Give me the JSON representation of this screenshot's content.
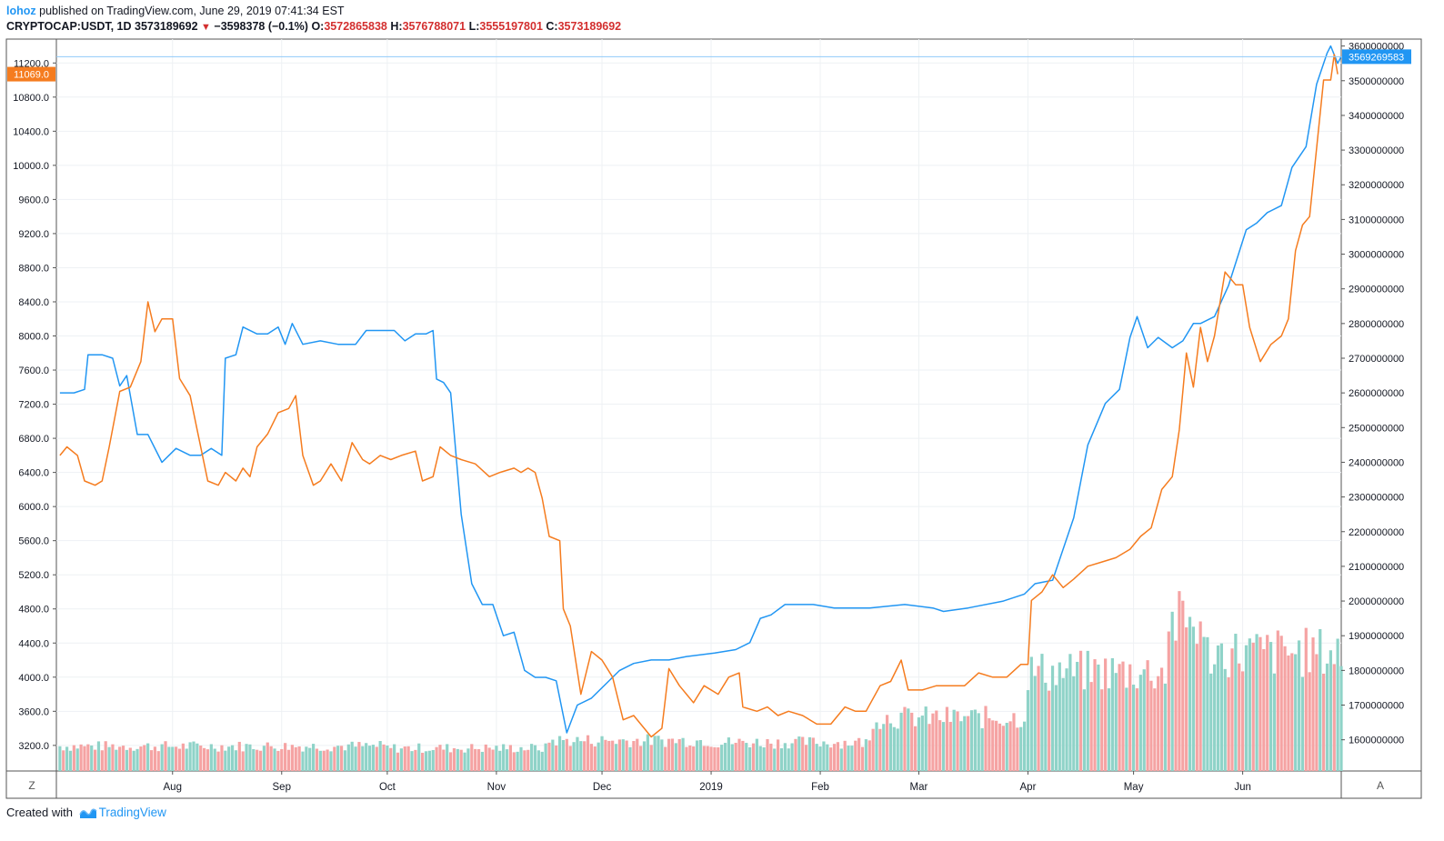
{
  "header": {
    "username": "lohoz",
    "published_text": "published on TradingView.com, June 29, 2019 07:41:34 EST",
    "symbol": "CRYPTOCAP:USDT, 1D",
    "last": "3573189692",
    "change": "−3598378 (−0.1%)",
    "open_label": "O:",
    "open": "3572865838",
    "high_label": "H:",
    "high": "3576788071",
    "low_label": "L:",
    "low": "3555197801",
    "close_label": "C:",
    "close": "3573189692"
  },
  "footer": {
    "created_with": "Created with",
    "brand": "TradingView"
  },
  "toolbar": {
    "left_scale_button": "Z",
    "auto_scale_button": "A"
  },
  "colors": {
    "usdt_line": "#2196f3",
    "btc_line": "#f57c1f",
    "volume_up": "#8fd3c8",
    "volume_down": "#f5a3a3",
    "grid": "#eef1f4",
    "border": "#555555"
  },
  "chart_data": {
    "type": "line",
    "x_range": [
      "2018-06-29",
      "2019-06-29"
    ],
    "x_ticks": [
      "Aug",
      "Sep",
      "Oct",
      "Nov",
      "Dec",
      "2019",
      "Feb",
      "Mar",
      "Apr",
      "May",
      "Jun"
    ],
    "x_tick_dates": [
      "2018-08-01",
      "2018-09-01",
      "2018-10-01",
      "2018-11-01",
      "2018-12-01",
      "2019-01-01",
      "2019-02-01",
      "2019-03-01",
      "2019-04-01",
      "2019-05-01",
      "2019-06-01"
    ],
    "left_axis": {
      "ylim": [
        2900,
        11480
      ],
      "ticks": [
        "3200.0",
        "3600.0",
        "4000.0",
        "4400.0",
        "4800.0",
        "5200.0",
        "5600.0",
        "6000.0",
        "6400.0",
        "6800.0",
        "7200.0",
        "7600.0",
        "8000.0",
        "8400.0",
        "8800.0",
        "9200.0",
        "9600.0",
        "10000.0",
        "10400.0",
        "10800.0",
        "11200.0"
      ],
      "last_value_label": "11069.0",
      "last_value": 11069
    },
    "right_axis": {
      "ylim": [
        1510000000,
        3620000000
      ],
      "ticks": [
        "1600000000",
        "1700000000",
        "1800000000",
        "1900000000",
        "2000000000",
        "2100000000",
        "2200000000",
        "2300000000",
        "2400000000",
        "2500000000",
        "2600000000",
        "2700000000",
        "2800000000",
        "2900000000",
        "3000000000",
        "3100000000",
        "3200000000",
        "3300000000",
        "3400000000",
        "3500000000",
        "3600000000"
      ],
      "last_value_label": "3569269583",
      "last_value": 3569269583
    },
    "grid": true,
    "series": [
      {
        "axis": "right",
        "points": [
          [
            "2018-06-30",
            2600000000
          ],
          [
            "2018-07-04",
            2600000000
          ],
          [
            "2018-07-07",
            2610000000
          ],
          [
            "2018-07-08",
            2710000000
          ],
          [
            "2018-07-12",
            2710000000
          ],
          [
            "2018-07-15",
            2700000000
          ],
          [
            "2018-07-17",
            2620000000
          ],
          [
            "2018-07-19",
            2650000000
          ],
          [
            "2018-07-22",
            2480000000
          ],
          [
            "2018-07-25",
            2480000000
          ],
          [
            "2018-07-29",
            2400000000
          ],
          [
            "2018-08-02",
            2440000000
          ],
          [
            "2018-08-06",
            2420000000
          ],
          [
            "2018-08-09",
            2420000000
          ],
          [
            "2018-08-12",
            2440000000
          ],
          [
            "2018-08-15",
            2420000000
          ],
          [
            "2018-08-16",
            2700000000
          ],
          [
            "2018-08-19",
            2710000000
          ],
          [
            "2018-08-21",
            2790000000
          ],
          [
            "2018-08-25",
            2770000000
          ],
          [
            "2018-08-28",
            2770000000
          ],
          [
            "2018-08-31",
            2790000000
          ],
          [
            "2018-09-02",
            2740000000
          ],
          [
            "2018-09-04",
            2800000000
          ],
          [
            "2018-09-07",
            2740000000
          ],
          [
            "2018-09-12",
            2750000000
          ],
          [
            "2018-09-17",
            2740000000
          ],
          [
            "2018-09-22",
            2740000000
          ],
          [
            "2018-09-25",
            2780000000
          ],
          [
            "2018-09-30",
            2780000000
          ],
          [
            "2018-10-03",
            2780000000
          ],
          [
            "2018-10-06",
            2750000000
          ],
          [
            "2018-10-09",
            2770000000
          ],
          [
            "2018-10-12",
            2770000000
          ],
          [
            "2018-10-14",
            2780000000
          ],
          [
            "2018-10-15",
            2640000000
          ],
          [
            "2018-10-17",
            2630000000
          ],
          [
            "2018-10-19",
            2600000000
          ],
          [
            "2018-10-22",
            2250000000
          ],
          [
            "2018-10-25",
            2050000000
          ],
          [
            "2018-10-28",
            1990000000
          ],
          [
            "2018-10-31",
            1990000000
          ],
          [
            "2018-11-03",
            1900000000
          ],
          [
            "2018-11-06",
            1910000000
          ],
          [
            "2018-11-09",
            1800000000
          ],
          [
            "2018-11-12",
            1780000000
          ],
          [
            "2018-11-15",
            1780000000
          ],
          [
            "2018-11-18",
            1770000000
          ],
          [
            "2018-11-21",
            1620000000
          ],
          [
            "2018-11-24",
            1700000000
          ],
          [
            "2018-11-28",
            1720000000
          ],
          [
            "2018-12-02",
            1760000000
          ],
          [
            "2018-12-06",
            1800000000
          ],
          [
            "2018-12-10",
            1820000000
          ],
          [
            "2018-12-15",
            1830000000
          ],
          [
            "2018-12-20",
            1830000000
          ],
          [
            "2018-12-25",
            1840000000
          ],
          [
            "2019-01-02",
            1850000000
          ],
          [
            "2019-01-08",
            1860000000
          ],
          [
            "2019-01-12",
            1880000000
          ],
          [
            "2019-01-15",
            1950000000
          ],
          [
            "2019-01-18",
            1960000000
          ],
          [
            "2019-01-22",
            1990000000
          ],
          [
            "2019-01-30",
            1990000000
          ],
          [
            "2019-02-05",
            1980000000
          ],
          [
            "2019-02-15",
            1980000000
          ],
          [
            "2019-02-25",
            1990000000
          ],
          [
            "2019-03-05",
            1980000000
          ],
          [
            "2019-03-08",
            1970000000
          ],
          [
            "2019-03-15",
            1980000000
          ],
          [
            "2019-03-25",
            2000000000
          ],
          [
            "2019-03-31",
            2020000000
          ],
          [
            "2019-04-03",
            2050000000
          ],
          [
            "2019-04-08",
            2060000000
          ],
          [
            "2019-04-14",
            2240000000
          ],
          [
            "2019-04-18",
            2450000000
          ],
          [
            "2019-04-23",
            2570000000
          ],
          [
            "2019-04-27",
            2610000000
          ],
          [
            "2019-04-30",
            2760000000
          ],
          [
            "2019-05-02",
            2820000000
          ],
          [
            "2019-05-05",
            2730000000
          ],
          [
            "2019-05-08",
            2760000000
          ],
          [
            "2019-05-12",
            2730000000
          ],
          [
            "2019-05-15",
            2750000000
          ],
          [
            "2019-05-18",
            2800000000
          ],
          [
            "2019-05-20",
            2800000000
          ],
          [
            "2019-05-24",
            2820000000
          ],
          [
            "2019-05-28",
            2910000000
          ],
          [
            "2019-06-02",
            3070000000
          ],
          [
            "2019-06-05",
            3090000000
          ],
          [
            "2019-06-08",
            3120000000
          ],
          [
            "2019-06-12",
            3140000000
          ],
          [
            "2019-06-15",
            3250000000
          ],
          [
            "2019-06-19",
            3310000000
          ],
          [
            "2019-06-22",
            3490000000
          ],
          [
            "2019-06-25",
            3580000000
          ],
          [
            "2019-06-26",
            3600000000
          ],
          [
            "2019-06-28",
            3550000000
          ],
          [
            "2019-06-29",
            3570000000
          ]
        ]
      },
      {
        "axis": "left",
        "points": [
          [
            "2018-06-30",
            6600
          ],
          [
            "2018-07-02",
            6700
          ],
          [
            "2018-07-05",
            6600
          ],
          [
            "2018-07-07",
            6300
          ],
          [
            "2018-07-10",
            6250
          ],
          [
            "2018-07-12",
            6300
          ],
          [
            "2018-07-14",
            6700
          ],
          [
            "2018-07-17",
            7350
          ],
          [
            "2018-07-20",
            7400
          ],
          [
            "2018-07-23",
            7700
          ],
          [
            "2018-07-25",
            8400
          ],
          [
            "2018-07-27",
            8050
          ],
          [
            "2018-07-29",
            8200
          ],
          [
            "2018-08-01",
            8200
          ],
          [
            "2018-08-03",
            7500
          ],
          [
            "2018-08-06",
            7300
          ],
          [
            "2018-08-08",
            6900
          ],
          [
            "2018-08-11",
            6300
          ],
          [
            "2018-08-14",
            6250
          ],
          [
            "2018-08-16",
            6400
          ],
          [
            "2018-08-19",
            6300
          ],
          [
            "2018-08-21",
            6450
          ],
          [
            "2018-08-23",
            6350
          ],
          [
            "2018-08-25",
            6700
          ],
          [
            "2018-08-28",
            6850
          ],
          [
            "2018-08-31",
            7100
          ],
          [
            "2018-09-03",
            7150
          ],
          [
            "2018-09-05",
            7300
          ],
          [
            "2018-09-07",
            6600
          ],
          [
            "2018-09-10",
            6250
          ],
          [
            "2018-09-12",
            6300
          ],
          [
            "2018-09-15",
            6500
          ],
          [
            "2018-09-18",
            6300
          ],
          [
            "2018-09-21",
            6750
          ],
          [
            "2018-09-24",
            6550
          ],
          [
            "2018-09-26",
            6500
          ],
          [
            "2018-09-29",
            6600
          ],
          [
            "2018-10-02",
            6550
          ],
          [
            "2018-10-05",
            6600
          ],
          [
            "2018-10-09",
            6650
          ],
          [
            "2018-10-11",
            6300
          ],
          [
            "2018-10-14",
            6350
          ],
          [
            "2018-10-16",
            6700
          ],
          [
            "2018-10-19",
            6600
          ],
          [
            "2018-10-22",
            6550
          ],
          [
            "2018-10-26",
            6500
          ],
          [
            "2018-10-30",
            6350
          ],
          [
            "2018-11-02",
            6400
          ],
          [
            "2018-11-06",
            6450
          ],
          [
            "2018-11-08",
            6400
          ],
          [
            "2018-11-10",
            6450
          ],
          [
            "2018-11-12",
            6400
          ],
          [
            "2018-11-14",
            6100
          ],
          [
            "2018-11-16",
            5650
          ],
          [
            "2018-11-19",
            5600
          ],
          [
            "2018-11-20",
            4800
          ],
          [
            "2018-11-22",
            4600
          ],
          [
            "2018-11-25",
            3800
          ],
          [
            "2018-11-28",
            4300
          ],
          [
            "2018-12-01",
            4200
          ],
          [
            "2018-12-04",
            4000
          ],
          [
            "2018-12-07",
            3500
          ],
          [
            "2018-12-10",
            3550
          ],
          [
            "2018-12-15",
            3300
          ],
          [
            "2018-12-18",
            3400
          ],
          [
            "2018-12-20",
            4100
          ],
          [
            "2018-12-23",
            3900
          ],
          [
            "2018-12-25",
            3800
          ],
          [
            "2018-12-27",
            3700
          ],
          [
            "2018-12-30",
            3900
          ],
          [
            "2019-01-03",
            3800
          ],
          [
            "2019-01-06",
            4000
          ],
          [
            "2019-01-09",
            4050
          ],
          [
            "2019-01-10",
            3650
          ],
          [
            "2019-01-14",
            3600
          ],
          [
            "2019-01-17",
            3650
          ],
          [
            "2019-01-20",
            3550
          ],
          [
            "2019-01-23",
            3600
          ],
          [
            "2019-01-27",
            3550
          ],
          [
            "2019-01-31",
            3450
          ],
          [
            "2019-02-04",
            3450
          ],
          [
            "2019-02-08",
            3650
          ],
          [
            "2019-02-11",
            3600
          ],
          [
            "2019-02-14",
            3600
          ],
          [
            "2019-02-18",
            3900
          ],
          [
            "2019-02-21",
            3950
          ],
          [
            "2019-02-24",
            4200
          ],
          [
            "2019-02-26",
            3850
          ],
          [
            "2019-03-02",
            3850
          ],
          [
            "2019-03-06",
            3900
          ],
          [
            "2019-03-10",
            3900
          ],
          [
            "2019-03-14",
            3900
          ],
          [
            "2019-03-18",
            4050
          ],
          [
            "2019-03-22",
            4000
          ],
          [
            "2019-03-26",
            4000
          ],
          [
            "2019-03-30",
            4150
          ],
          [
            "2019-04-01",
            4150
          ],
          [
            "2019-04-02",
            4900
          ],
          [
            "2019-04-05",
            5000
          ],
          [
            "2019-04-08",
            5200
          ],
          [
            "2019-04-11",
            5050
          ],
          [
            "2019-04-14",
            5150
          ],
          [
            "2019-04-18",
            5300
          ],
          [
            "2019-04-22",
            5350
          ],
          [
            "2019-04-26",
            5400
          ],
          [
            "2019-04-30",
            5500
          ],
          [
            "2019-05-03",
            5650
          ],
          [
            "2019-05-06",
            5750
          ],
          [
            "2019-05-09",
            6200
          ],
          [
            "2019-05-12",
            6350
          ],
          [
            "2019-05-14",
            6900
          ],
          [
            "2019-05-16",
            7800
          ],
          [
            "2019-05-18",
            7400
          ],
          [
            "2019-05-20",
            8100
          ],
          [
            "2019-05-22",
            7700
          ],
          [
            "2019-05-24",
            8000
          ],
          [
            "2019-05-27",
            8750
          ],
          [
            "2019-05-30",
            8600
          ],
          [
            "2019-06-01",
            8600
          ],
          [
            "2019-06-03",
            8100
          ],
          [
            "2019-06-06",
            7700
          ],
          [
            "2019-06-09",
            7900
          ],
          [
            "2019-06-12",
            8000
          ],
          [
            "2019-06-14",
            8200
          ],
          [
            "2019-06-16",
            9000
          ],
          [
            "2019-06-18",
            9300
          ],
          [
            "2019-06-20",
            9400
          ],
          [
            "2019-06-22",
            10200
          ],
          [
            "2019-06-24",
            11000
          ],
          [
            "2019-06-26",
            11000
          ],
          [
            "2019-06-27",
            11300
          ],
          [
            "2019-06-28",
            11069
          ]
        ]
      }
    ],
    "volume": {
      "description_of_scale": "relative bar height, 0 to 1",
      "up_is_teal": true,
      "segments": [
        {
          "from": "2018-06-30",
          "to": "2018-09-30",
          "level": 0.13
        },
        {
          "from": "2018-10-01",
          "to": "2018-11-15",
          "level": 0.12
        },
        {
          "from": "2018-11-16",
          "to": "2018-12-31",
          "level": 0.16
        },
        {
          "from": "2019-01-01",
          "to": "2019-02-15",
          "level": 0.15
        },
        {
          "from": "2019-02-16",
          "to": "2019-03-31",
          "level": 0.28
        },
        {
          "from": "2019-04-01",
          "to": "2019-05-10",
          "level": 0.52
        },
        {
          "from": "2019-05-11",
          "to": "2019-05-20",
          "level": 0.78
        },
        {
          "from": "2019-05-21",
          "to": "2019-06-29",
          "level": 0.62
        }
      ]
    }
  }
}
